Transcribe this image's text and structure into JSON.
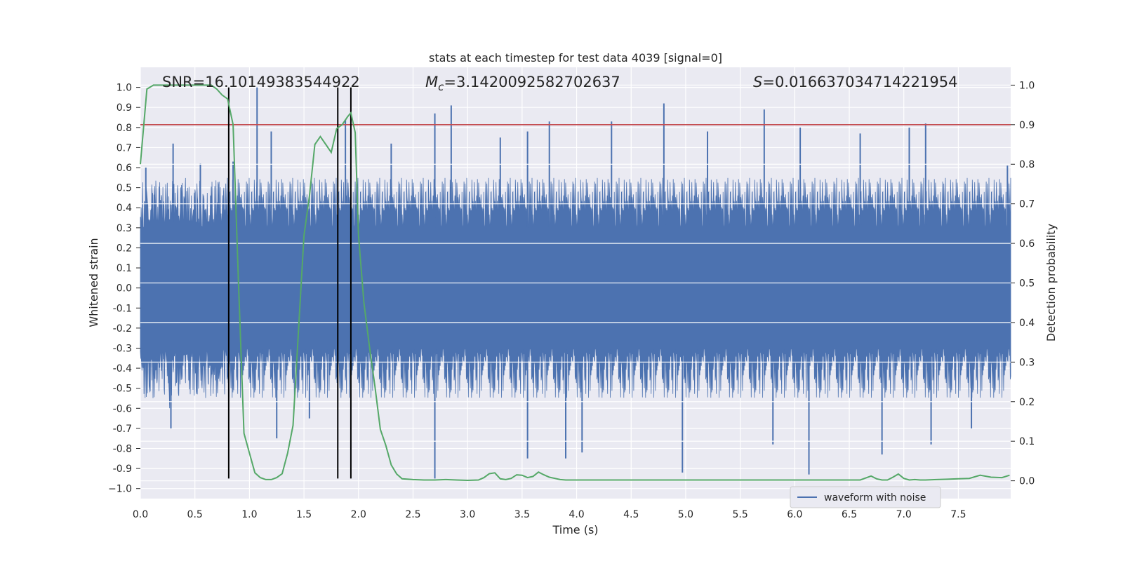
{
  "chart_data": {
    "type": "line",
    "title": "stats at each timestep for test data 4039 [signal=0]",
    "xlabel": "Time (s)",
    "ylabel": "Whitened strain",
    "y2label": "Detection probability",
    "xlim": [
      0.0,
      7.98
    ],
    "ylim": [
      -1.05,
      1.1
    ],
    "y2lim": [
      -0.045,
      1.045
    ],
    "xticks": [
      "0.0",
      "0.5",
      "1.0",
      "1.5",
      "2.0",
      "2.5",
      "3.0",
      "3.5",
      "4.0",
      "4.5",
      "5.0",
      "5.5",
      "6.0",
      "6.5",
      "7.0",
      "7.5"
    ],
    "yticks": [
      "1.0",
      "0.9",
      "0.8",
      "0.7",
      "0.6",
      "0.5",
      "0.4",
      "0.3",
      "0.2",
      "0.1",
      "0.0",
      "-0.1",
      "-0.2",
      "-0.3",
      "-0.4",
      "-0.5",
      "-0.6",
      "-0.7",
      "-0.8",
      "-0.9",
      "−1.0"
    ],
    "y2ticks": [
      "1.0",
      "0.9",
      "0.8",
      "0.7",
      "0.6",
      "0.5",
      "0.4",
      "0.3",
      "0.2",
      "0.1",
      "0.0"
    ],
    "grid": true,
    "legend_position": "bottom-right",
    "annotations": {
      "snr": "SNR=16.10149383544922",
      "mc_symbol": "M",
      "mc_sub": "c",
      "mc_value": "=3.1420092582702637",
      "s_symbol": "S",
      "s_value": "=0.016637034714221954"
    },
    "threshold": {
      "y2": 0.9,
      "color": "#c44e52"
    },
    "markers": {
      "x": [
        0.81,
        1.81,
        1.93
      ],
      "y_range": [
        -0.95,
        1.0
      ],
      "color": "#000000"
    },
    "series": [
      {
        "name": "waveform with noise",
        "axis": "left",
        "color": "#4c72b0",
        "band": {
          "core": 0.3,
          "typical_peak": 0.55,
          "max_peak": 1.0,
          "min_peak": -0.95
        },
        "spikes": [
          [
            0.05,
            0.6
          ],
          [
            0.3,
            0.72
          ],
          [
            0.55,
            0.62
          ],
          [
            0.85,
            0.63
          ],
          [
            1.07,
            1.0
          ],
          [
            1.2,
            0.78
          ],
          [
            1.88,
            0.84
          ],
          [
            2.3,
            0.72
          ],
          [
            2.7,
            0.87
          ],
          [
            2.85,
            0.91
          ],
          [
            3.3,
            0.75
          ],
          [
            3.55,
            0.78
          ],
          [
            3.75,
            0.83
          ],
          [
            4.32,
            0.83
          ],
          [
            4.8,
            0.92
          ],
          [
            5.2,
            0.78
          ],
          [
            5.72,
            0.89
          ],
          [
            6.05,
            0.8
          ],
          [
            6.6,
            0.77
          ],
          [
            7.05,
            0.8
          ],
          [
            7.2,
            0.82
          ],
          [
            7.95,
            0.61
          ],
          [
            0.28,
            -0.7
          ],
          [
            1.25,
            -0.75
          ],
          [
            1.55,
            -0.65
          ],
          [
            2.7,
            -0.95
          ],
          [
            3.55,
            -0.85
          ],
          [
            3.9,
            -0.85
          ],
          [
            4.05,
            -0.82
          ],
          [
            4.97,
            -0.92
          ],
          [
            5.8,
            -0.78
          ],
          [
            6.13,
            -0.93
          ],
          [
            6.8,
            -0.83
          ],
          [
            7.25,
            -0.78
          ],
          [
            7.62,
            -0.7
          ]
        ]
      },
      {
        "name": "",
        "axis": "right",
        "color": "#55a868",
        "x": [
          0.0,
          0.06,
          0.12,
          0.2,
          0.3,
          0.4,
          0.5,
          0.6,
          0.65,
          0.7,
          0.75,
          0.8,
          0.85,
          0.9,
          0.95,
          1.0,
          1.05,
          1.1,
          1.15,
          1.2,
          1.25,
          1.3,
          1.35,
          1.4,
          1.45,
          1.5,
          1.55,
          1.6,
          1.65,
          1.7,
          1.75,
          1.8,
          1.85,
          1.9,
          1.93,
          1.97,
          2.0,
          2.05,
          2.1,
          2.15,
          2.2,
          2.25,
          2.3,
          2.35,
          2.4,
          2.5,
          2.6,
          2.7,
          2.8,
          2.9,
          3.0,
          3.1,
          3.15,
          3.2,
          3.25,
          3.3,
          3.35,
          3.4,
          3.45,
          3.5,
          3.55,
          3.6,
          3.65,
          3.7,
          3.75,
          3.8,
          3.85,
          3.9,
          3.95,
          4.0,
          4.05,
          4.1,
          4.2,
          4.3,
          4.4,
          4.5,
          4.6,
          4.8,
          5.0,
          5.2,
          5.4,
          5.6,
          5.8,
          6.0,
          6.2,
          6.4,
          6.6,
          6.7,
          6.75,
          6.8,
          6.85,
          6.9,
          6.95,
          7.0,
          7.05,
          7.1,
          7.15,
          7.2,
          7.3,
          7.4,
          7.5,
          7.6,
          7.7,
          7.8,
          7.9,
          7.97
        ],
        "y": [
          0.8,
          0.99,
          1.0,
          1.0,
          1.0,
          1.0,
          1.0,
          1.0,
          1.0,
          0.99,
          0.975,
          0.965,
          0.9,
          0.5,
          0.12,
          0.07,
          0.02,
          0.008,
          0.003,
          0.003,
          0.008,
          0.018,
          0.07,
          0.14,
          0.38,
          0.62,
          0.72,
          0.85,
          0.87,
          0.85,
          0.83,
          0.89,
          0.9,
          0.92,
          0.93,
          0.88,
          0.62,
          0.45,
          0.34,
          0.24,
          0.13,
          0.09,
          0.04,
          0.017,
          0.005,
          0.003,
          0.002,
          0.002,
          0.003,
          0.002,
          0.001,
          0.002,
          0.008,
          0.018,
          0.02,
          0.005,
          0.003,
          0.006,
          0.015,
          0.014,
          0.008,
          0.011,
          0.022,
          0.015,
          0.009,
          0.006,
          0.003,
          0.002,
          0.002,
          0.002,
          0.002,
          0.002,
          0.002,
          0.002,
          0.002,
          0.002,
          0.002,
          0.002,
          0.002,
          0.002,
          0.002,
          0.002,
          0.002,
          0.002,
          0.002,
          0.002,
          0.002,
          0.012,
          0.005,
          0.002,
          0.002,
          0.009,
          0.017,
          0.006,
          0.002,
          0.003,
          0.002,
          0.002,
          0.003,
          0.004,
          0.005,
          0.006,
          0.014,
          0.009,
          0.008,
          0.014
        ]
      }
    ]
  }
}
